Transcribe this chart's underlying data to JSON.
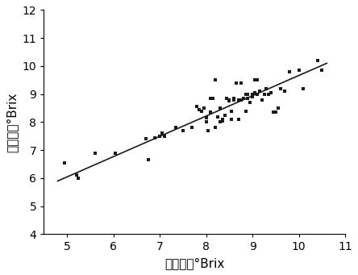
{
  "scatter_x": [
    4.95,
    5.2,
    5.25,
    5.6,
    6.05,
    6.7,
    6.75,
    6.9,
    7.0,
    7.05,
    7.1,
    7.35,
    7.5,
    7.7,
    7.8,
    7.85,
    7.9,
    7.95,
    8.0,
    8.0,
    8.05,
    8.1,
    8.1,
    8.15,
    8.2,
    8.2,
    8.25,
    8.3,
    8.3,
    8.35,
    8.35,
    8.4,
    8.45,
    8.5,
    8.5,
    8.55,
    8.55,
    8.6,
    8.6,
    8.65,
    8.7,
    8.7,
    8.75,
    8.75,
    8.8,
    8.85,
    8.85,
    8.9,
    8.9,
    8.95,
    9.0,
    9.0,
    9.05,
    9.05,
    9.1,
    9.1,
    9.15,
    9.2,
    9.25,
    9.3,
    9.35,
    9.4,
    9.45,
    9.5,
    9.55,
    9.6,
    9.7,
    9.8,
    10.0,
    10.1,
    10.4,
    10.5
  ],
  "scatter_y": [
    6.55,
    6.1,
    6.0,
    6.9,
    6.9,
    7.4,
    6.65,
    7.45,
    7.5,
    7.6,
    7.5,
    7.8,
    7.7,
    7.8,
    8.55,
    8.45,
    8.4,
    8.5,
    8.0,
    8.15,
    7.7,
    8.35,
    8.85,
    8.85,
    9.5,
    7.8,
    8.2,
    8.0,
    8.5,
    8.05,
    8.1,
    8.25,
    8.85,
    8.8,
    8.75,
    8.4,
    8.1,
    8.85,
    8.8,
    9.4,
    8.1,
    8.8,
    8.8,
    9.4,
    8.85,
    8.4,
    9.0,
    8.85,
    9.0,
    8.7,
    8.9,
    9.0,
    9.05,
    9.5,
    9.0,
    9.5,
    9.1,
    8.8,
    9.0,
    9.2,
    9.0,
    9.05,
    8.35,
    8.35,
    8.5,
    9.2,
    9.1,
    9.8,
    9.85,
    9.2,
    10.2,
    9.85
  ],
  "line_x": [
    4.8,
    10.6
  ],
  "line_y": [
    5.9,
    10.1
  ],
  "xlabel": "测量値，°Brix",
  "ylabel": "预测値，°Brix",
  "xlim": [
    4.5,
    11
  ],
  "ylim": [
    4,
    12
  ],
  "xticks": [
    5,
    6,
    7,
    8,
    9,
    10,
    11
  ],
  "yticks": [
    4,
    5,
    6,
    7,
    8,
    9,
    10,
    11,
    12
  ],
  "scatter_color": "#1a1a1a",
  "line_color": "#1a1a1a",
  "marker_size": 5,
  "line_width": 1.2,
  "xlabel_fontsize": 11,
  "ylabel_fontsize": 11,
  "tick_fontsize": 10
}
